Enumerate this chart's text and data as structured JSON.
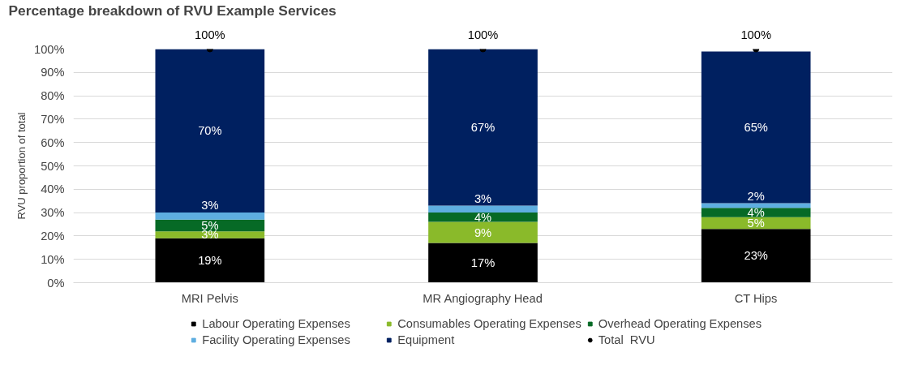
{
  "chart_data": {
    "type": "bar",
    "stacked": true,
    "title": "Percentage breakdown of RVU Example Services",
    "ylabel": "RVU proportion of total",
    "categories": [
      "MRI Pelvis",
      "MR Angiography Head",
      "CT Hips"
    ],
    "series": [
      {
        "name": "Labour Operating Expenses",
        "color": "#000000",
        "values": [
          19,
          17,
          23
        ],
        "value_labels": [
          "19%",
          "17%",
          "23%"
        ]
      },
      {
        "name": "Consumables Operating Expenses",
        "color": "#8aba2a",
        "values": [
          3,
          9,
          5
        ],
        "value_labels": [
          "3%",
          "9%",
          "5%"
        ]
      },
      {
        "name": "Overhead Operating Expenses",
        "color": "#066a26",
        "values": [
          5,
          4,
          4
        ],
        "value_labels": [
          "5%",
          "4%",
          "4%"
        ]
      },
      {
        "name": "Facility Operating Expenses",
        "color": "#5eaee0",
        "values": [
          3,
          3,
          2
        ],
        "value_labels": [
          "3%",
          "3%",
          "2%"
        ]
      },
      {
        "name": "Equipment",
        "color": "#002060",
        "values": [
          70,
          67,
          65
        ],
        "value_labels": [
          "70%",
          "67%",
          "65%"
        ]
      },
      {
        "name": "Total  RVU",
        "type": "scatter",
        "color": "#000000",
        "values": [
          100,
          100,
          100
        ],
        "value_labels": [
          "100%",
          "100%",
          "100%"
        ]
      }
    ],
    "ylim": [
      0,
      100
    ],
    "yticks": [
      {
        "value": 0,
        "label": "0%"
      },
      {
        "value": 10,
        "label": "10%"
      },
      {
        "value": 20,
        "label": "20%"
      },
      {
        "value": 30,
        "label": "30%"
      },
      {
        "value": 40,
        "label": "40%"
      },
      {
        "value": 50,
        "label": "50%"
      },
      {
        "value": 60,
        "label": "60%"
      },
      {
        "value": 70,
        "label": "70%"
      },
      {
        "value": 80,
        "label": "80%"
      },
      {
        "value": 90,
        "label": "90%"
      },
      {
        "value": 100,
        "label": "100%"
      }
    ],
    "grid": "y",
    "legend": "bottom",
    "marker": "circle"
  }
}
